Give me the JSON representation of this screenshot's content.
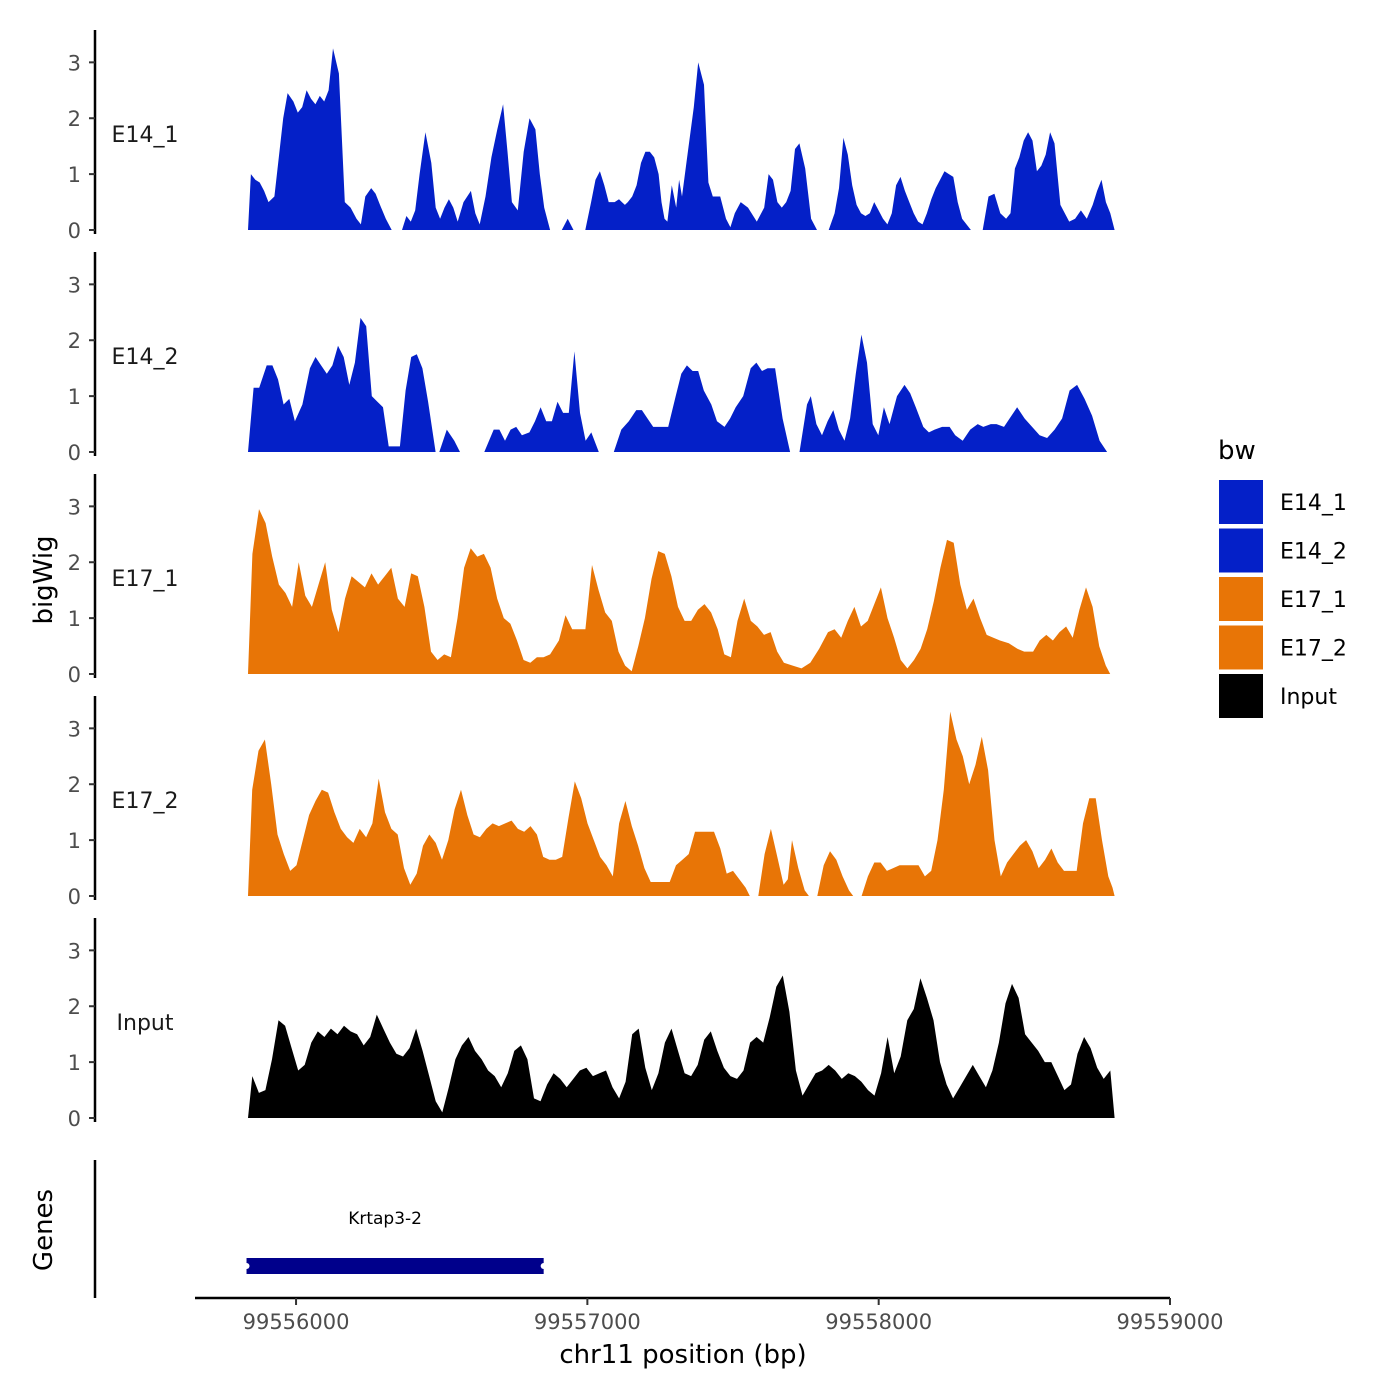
{
  "chart_data": {
    "type": "area",
    "title": "",
    "ylabel": "bigWig",
    "xlabel": "chr11 position (bp)",
    "xlim": [
      99555660,
      99559000
    ],
    "xticks": [
      99556000,
      99557000,
      99558000,
      99559000
    ],
    "ylim": [
      0,
      3.4
    ],
    "yticks": [
      0,
      1,
      2,
      3
    ],
    "tracks_label": "bigWig",
    "genes_label": "Genes",
    "legend": {
      "title": "bw",
      "position": "right",
      "entries": [
        {
          "label": "E14_1",
          "color": "#0420C8"
        },
        {
          "label": "E14_2",
          "color": "#0420C8"
        },
        {
          "label": "E17_1",
          "color": "#E87506"
        },
        {
          "label": "E17_2",
          "color": "#E87506"
        },
        {
          "label": "Input",
          "color": "#000000"
        }
      ]
    },
    "series": [
      {
        "name": "E14_1",
        "color": "#0420C8",
        "x": [
          99555840,
          99555850,
          99555865,
          99555880,
          99555895,
          99555910,
          99555930,
          99555945,
          99555960,
          99555975,
          99555995,
          99556010,
          99556025,
          99556040,
          99556055,
          99556070,
          99556085,
          99556100,
          99556115,
          99556130,
          99556150,
          99556170,
          99556190,
          99556210,
          99556225,
          99556240,
          99556260,
          99556275,
          99556290,
          99556310,
          99556330,
          99556350,
          99556365,
          99556380,
          99556395,
          99556410,
          99556425,
          99556445,
          99556465,
          99556480,
          99556495,
          99556510,
          99556525,
          99556540,
          99556555,
          99556575,
          99556600,
          99556615,
          99556630,
          99556650,
          99556670,
          99556690,
          99556710,
          99556725,
          99556740,
          99556760,
          99556780,
          99556800,
          99556820,
          99556835,
          99556850,
          99556870,
          99556890,
          99556910,
          99556930,
          99556950,
          99556970,
          99556990,
          99557010,
          99557025,
          99557040,
          99557055,
          99557070,
          99557080,
          99557090,
          99557105,
          99557115,
          99557125,
          99557135,
          99557150,
          99557165,
          99557180,
          99557195,
          99557210,
          99557225,
          99557240,
          99557250,
          99557260,
          99557270,
          99557285,
          99557300,
          99557310,
          99557320,
          99557335,
          99557360,
          99557375,
          99557395,
          99557410,
          99557425,
          99557450,
          99557470,
          99557485,
          99557500,
          99557520,
          99557545,
          99557575,
          99557600,
          99557615,
          99557630,
          99557645,
          99557660,
          99557675,
          99557690,
          99557705,
          99557720,
          99557740,
          99557760,
          99557780,
          99557800,
          99557820,
          99557840,
          99557855,
          99557870,
          99557885,
          99557900,
          99557915,
          99557930,
          99557945,
          99557960,
          99557975,
          99557990,
          99558005,
          99558020,
          99558035,
          99558050,
          99558065,
          99558080,
          99558095,
          99558110,
          99558125,
          99558140,
          99558155,
          99558170,
          99558185,
          99558200,
          99558215,
          99558230,
          99558245,
          99558260,
          99558275,
          99558290,
          99558305,
          99558325,
          99558345,
          99558365,
          99558385,
          99558405,
          99558425,
          99558440,
          99558455,
          99558470,
          99558485,
          99558500,
          99558515,
          99558530,
          99558545,
          99558560,
          99558575,
          99558590,
          99558610,
          99558625,
          99558640,
          99558660,
          99558680,
          99558700,
          99558720,
          99558735,
          99558750,
          99558765,
          99558780,
          99558795
        ],
        "y": [
          0,
          1.0,
          0.9,
          0.85,
          0.7,
          0.5,
          0.6,
          1.3,
          2.0,
          2.45,
          2.3,
          2.1,
          2.2,
          2.5,
          2.35,
          2.25,
          2.4,
          2.3,
          2.5,
          3.25,
          2.8,
          0.5,
          0.4,
          0.2,
          0.1,
          0.6,
          0.75,
          0.65,
          0.45,
          0.2,
          0,
          null,
          0,
          0.25,
          0.15,
          0.35,
          1.0,
          1.75,
          1.2,
          0.4,
          0.2,
          0.4,
          0.55,
          0.4,
          0.15,
          0.5,
          0.7,
          0.3,
          0.1,
          0.6,
          1.3,
          1.8,
          2.25,
          1.4,
          0.5,
          0.35,
          1.4,
          2.0,
          1.8,
          1.0,
          0.4,
          0,
          null,
          0,
          0.2,
          0,
          null,
          0,
          0.5,
          0.9,
          1.05,
          0.8,
          0.5,
          0.5,
          0.5,
          0.55,
          0.5,
          0.45,
          0.5,
          0.6,
          0.8,
          1.2,
          1.4,
          1.4,
          1.3,
          1.0,
          0.5,
          0.2,
          0.15,
          0.8,
          0.4,
          0.9,
          0.6,
          1.2,
          2.2,
          3.0,
          2.6,
          0.85,
          0.6,
          0.6,
          0.2,
          0.05,
          0.3,
          0.5,
          0.4,
          0.15,
          0.4,
          1.0,
          0.9,
          0.5,
          0.4,
          0.5,
          0.7,
          1.45,
          1.55,
          1.1,
          0.2,
          0,
          null,
          0,
          0.3,
          0.75,
          1.65,
          1.35,
          0.8,
          0.45,
          0.3,
          0.25,
          0.3,
          0.5,
          0.35,
          0.2,
          0.1,
          0.3,
          0.8,
          0.95,
          0.7,
          0.5,
          0.3,
          0.15,
          0.1,
          0.3,
          0.55,
          0.75,
          0.9,
          1.05,
          1.0,
          0.95,
          0.5,
          0.2,
          0.1,
          0,
          null,
          0,
          0.6,
          0.65,
          0.3,
          0.2,
          0.3,
          1.1,
          1.3,
          1.6,
          1.75,
          1.6,
          1.05,
          1.15,
          1.35,
          1.75,
          1.55,
          0.45,
          0.3,
          0.15,
          0.2,
          0.35,
          0.2,
          0.45,
          0.7,
          0.9,
          0.5,
          0.3,
          0
        ],
        "segments": "E14_1"
      }
    ],
    "genes": [
      {
        "name": "Krtap3-2",
        "start": 99555830,
        "end": 99556850,
        "color": "#00008B"
      }
    ]
  },
  "tracks": [
    {
      "label": "E14_1"
    },
    {
      "label": "E14_2"
    },
    {
      "label": "E17_1"
    },
    {
      "label": "E17_2"
    },
    {
      "label": "Input"
    }
  ]
}
